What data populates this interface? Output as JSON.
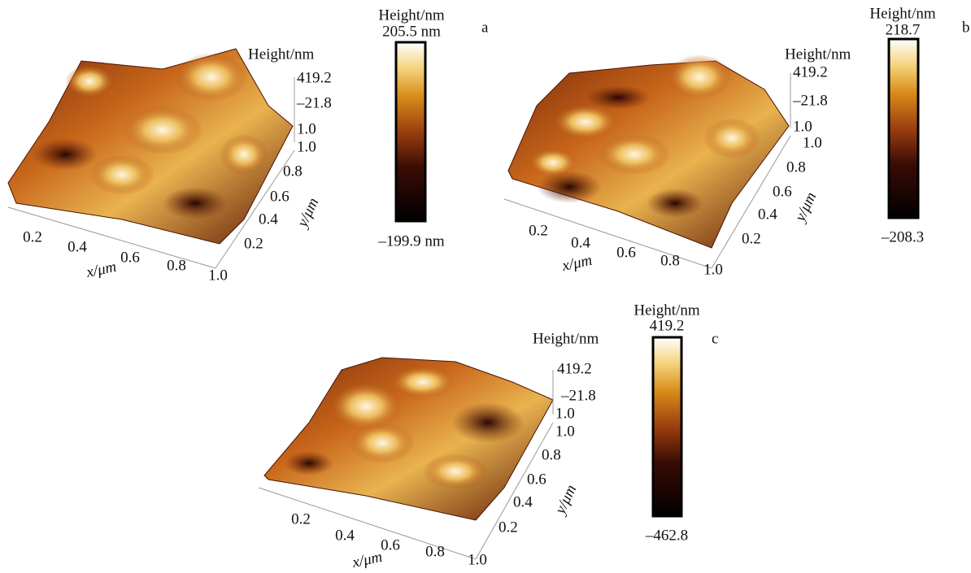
{
  "panels": [
    {
      "label": "a",
      "z_axis_title": "Height/nm",
      "z_ticks": [
        "419.2",
        "–21.8",
        "1.0"
      ],
      "x_ticks": [
        "0.2",
        "0.4",
        "0.6",
        "0.8",
        "1.0"
      ],
      "x_axis_title": "x/μm",
      "y_ticks": [
        "1.0",
        "0.8",
        "0.6",
        "0.4",
        "0.2"
      ],
      "y_axis_title": "y/μm",
      "colorbar_title": "Height/nm",
      "colorbar_max": "205.5 nm",
      "colorbar_min": "–199.9 nm"
    },
    {
      "label": "b",
      "z_axis_title": "Height/nm",
      "z_ticks": [
        "419.2",
        "–21.8",
        "1.0"
      ],
      "x_ticks": [
        "0.2",
        "0.4",
        "0.6",
        "0.8",
        "1.0"
      ],
      "x_axis_title": "x/μm",
      "y_ticks": [
        "1.0",
        "0.8",
        "0.6",
        "0.4",
        "0.2"
      ],
      "y_axis_title": "y/μm",
      "colorbar_title": "Height/nm",
      "colorbar_max": "218.7",
      "colorbar_min": "–208.3"
    },
    {
      "label": "c",
      "z_axis_title": "Height/nm",
      "z_ticks": [
        "419.2",
        "–21.8",
        "1.0"
      ],
      "x_ticks": [
        "0.2",
        "0.4",
        "0.6",
        "0.8",
        "1.0"
      ],
      "x_axis_title": "x/μm",
      "y_ticks": [
        "1.0",
        "0.8",
        "0.6",
        "0.4",
        "0.2"
      ],
      "y_axis_title": "y/μm",
      "colorbar_title": "Height/nm",
      "colorbar_max": "419.2",
      "colorbar_min": "–462.8"
    }
  ]
}
